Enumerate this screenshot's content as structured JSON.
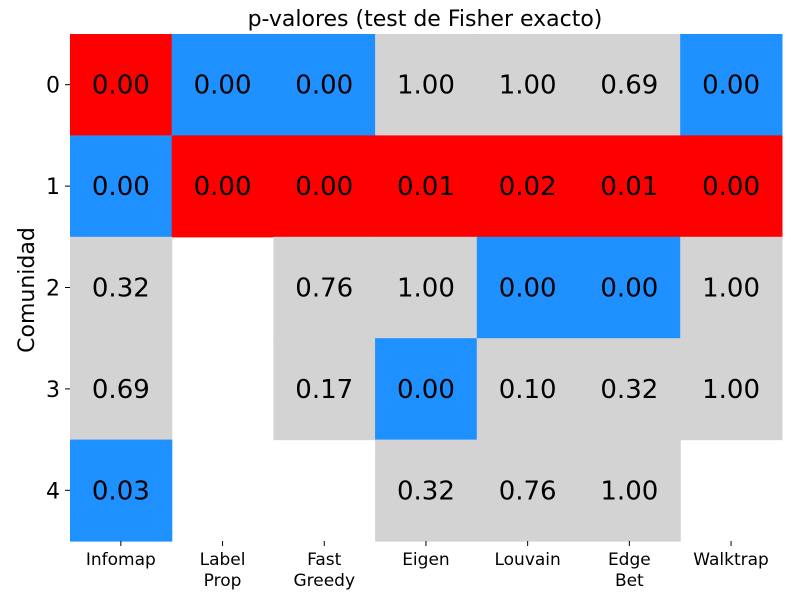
{
  "chart_data": {
    "type": "heatmap",
    "title": "p-valores (test de Fisher exacto)",
    "ylabel": "Comunidad",
    "xlabel": "",
    "x_categories": [
      [
        "Infomap"
      ],
      [
        "Label",
        "Prop"
      ],
      [
        "Fast",
        "Greedy"
      ],
      [
        "Eigen"
      ],
      [
        "Louvain"
      ],
      [
        "Edge",
        "Bet"
      ],
      [
        "Walktrap"
      ]
    ],
    "y_categories": [
      "0",
      "1",
      "2",
      "3",
      "4"
    ],
    "values": [
      [
        "0.00",
        "0.00",
        "0.00",
        "1.00",
        "1.00",
        "0.69",
        "0.00"
      ],
      [
        "0.00",
        "0.00",
        "0.00",
        "0.01",
        "0.02",
        "0.01",
        "0.00"
      ],
      [
        "0.32",
        null,
        "0.76",
        "1.00",
        "0.00",
        "0.00",
        "1.00"
      ],
      [
        "0.69",
        null,
        "0.17",
        "0.00",
        "0.10",
        "0.32",
        "1.00"
      ],
      [
        "0.03",
        null,
        null,
        "0.32",
        "0.76",
        "1.00",
        null
      ]
    ],
    "cell_colors": [
      [
        "red",
        "blue",
        "blue",
        "gray",
        "gray",
        "gray",
        "blue"
      ],
      [
        "blue",
        "red",
        "red",
        "red",
        "red",
        "red",
        "red"
      ],
      [
        "gray",
        null,
        "gray",
        "gray",
        "blue",
        "blue",
        "gray"
      ],
      [
        "gray",
        null,
        "gray",
        "blue",
        "gray",
        "gray",
        "gray"
      ],
      [
        "blue",
        null,
        null,
        "gray",
        "gray",
        "gray",
        null
      ]
    ],
    "palette": {
      "red": "#ff0000",
      "blue": "#1e90ff",
      "gray": "#d3d3d3"
    },
    "grid": false,
    "legend": "none"
  }
}
